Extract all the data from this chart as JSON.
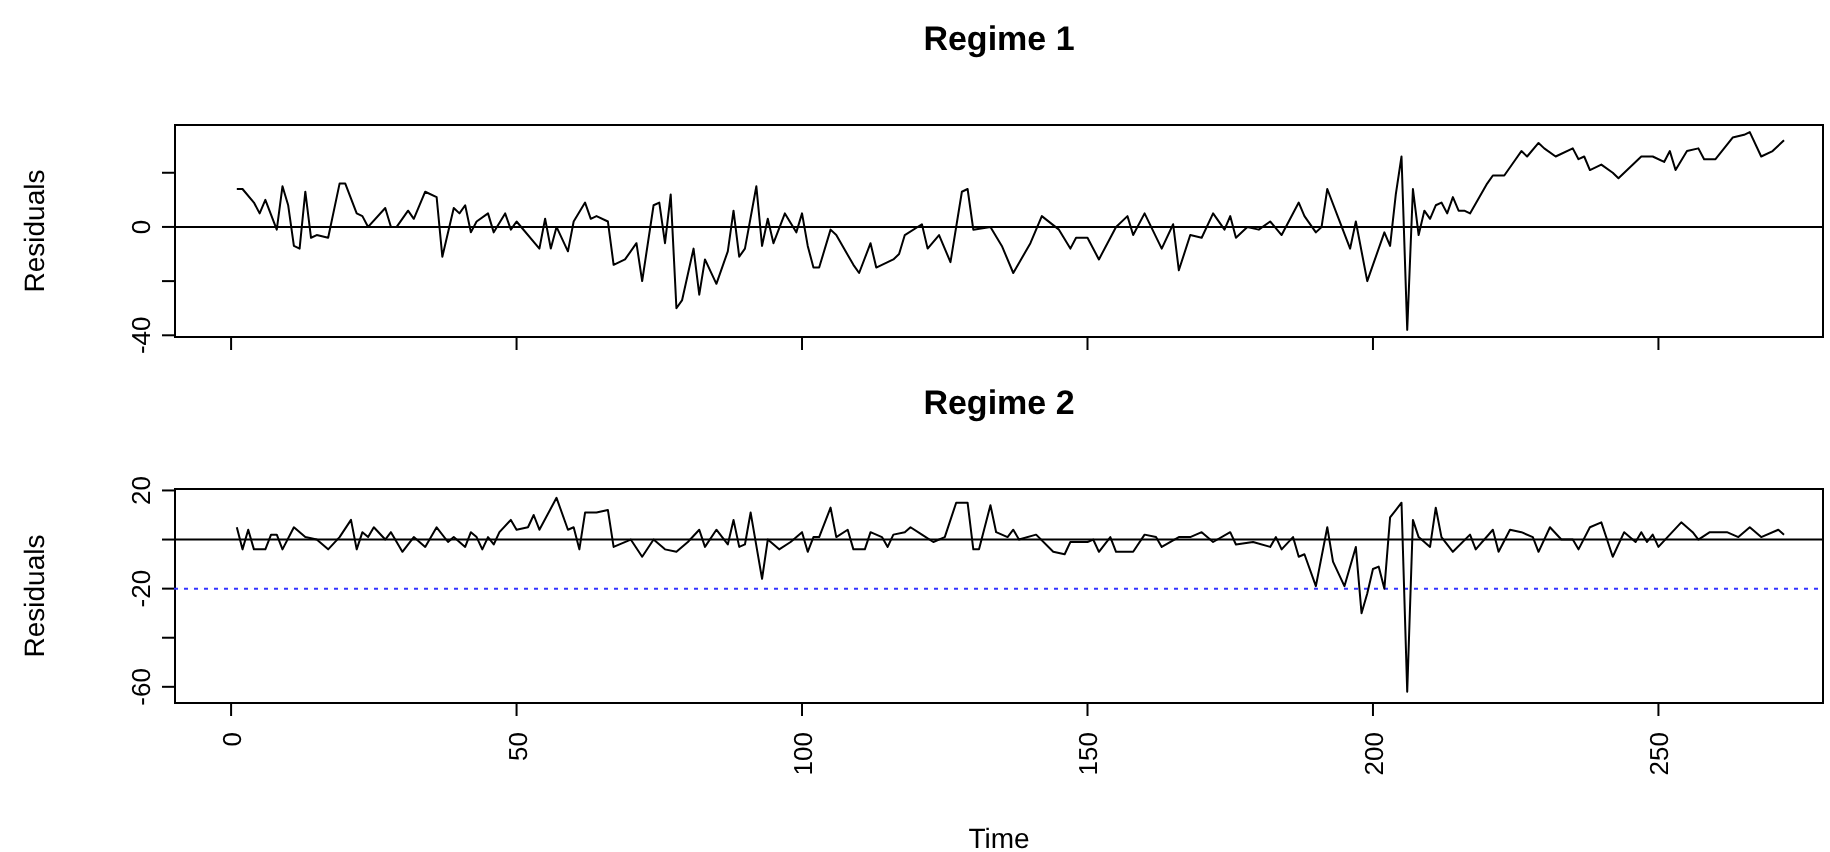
{
  "chart_data": [
    {
      "type": "line",
      "title": "Regime 1",
      "ylabel": "Residuals",
      "tick_labels": "y",
      "marker": "none",
      "line_style": "solid",
      "xlim": [
        -10,
        279
      ],
      "xticks": [
        0,
        50,
        100,
        150,
        200,
        250
      ],
      "ylim": [
        -41,
        38
      ],
      "yticks": [
        -40,
        {
          "value": -20,
          "label": null
        },
        0,
        {
          "value": 20,
          "label": null
        }
      ],
      "ref_lines": [
        {
          "axis": "y",
          "value": 0,
          "color": "#000000",
          "line_style": "solid"
        }
      ],
      "series": [
        {
          "color": "#000000",
          "x": [
            1,
            2,
            4,
            5,
            6,
            8,
            9,
            10,
            11,
            12,
            13,
            14,
            15,
            17,
            19,
            20,
            22,
            23,
            24,
            27,
            28,
            29,
            31,
            32,
            34,
            36,
            37,
            39,
            40,
            41,
            42,
            43,
            45,
            46,
            48,
            49,
            50,
            54,
            55,
            56,
            57,
            59,
            60,
            62,
            63,
            64,
            66,
            67,
            69,
            71,
            72,
            74,
            75,
            76,
            77,
            78,
            79,
            81,
            82,
            83,
            85,
            87,
            88,
            89,
            90,
            92,
            93,
            94,
            95,
            97,
            99,
            100,
            101,
            102,
            103,
            105,
            106,
            109,
            110,
            112,
            113,
            116,
            117,
            118,
            121,
            122,
            124,
            126,
            128,
            129,
            130,
            133,
            135,
            137,
            140,
            142,
            145,
            147,
            148,
            150,
            152,
            155,
            157,
            158,
            160,
            163,
            165,
            166,
            168,
            170,
            172,
            174,
            175,
            176,
            178,
            180,
            182,
            184,
            187,
            188,
            190,
            191,
            192,
            194,
            196,
            197,
            199,
            202,
            203,
            204,
            205,
            206,
            207,
            208,
            209,
            210,
            211,
            212,
            213,
            214,
            215,
            216,
            217,
            220,
            221,
            223,
            225,
            226,
            227,
            229,
            230,
            232,
            235,
            236,
            237,
            238,
            240,
            242,
            243,
            247,
            249,
            251,
            252,
            253,
            255,
            257,
            258,
            260,
            263,
            265,
            266,
            268,
            270,
            272
          ],
          "values": [
            14,
            14,
            9,
            5,
            10,
            -1,
            15,
            8,
            -7,
            -8,
            13,
            -4,
            -3,
            -4,
            16,
            16,
            5,
            4,
            0,
            7,
            0,
            0,
            6,
            3,
            13,
            11,
            -11,
            7,
            5,
            8,
            -2,
            2,
            5,
            -2,
            5,
            -1,
            2,
            -8,
            3,
            -8,
            0,
            -9,
            2,
            9,
            3,
            4,
            2,
            -14,
            -12,
            -6,
            -20,
            8,
            9,
            -6,
            12,
            -30,
            -27,
            -8,
            -25,
            -12,
            -21,
            -9,
            6,
            -11,
            -8,
            15,
            -7,
            3,
            -6,
            5,
            -2,
            5,
            -7,
            -15,
            -15,
            -1,
            -3,
            -14,
            -17,
            -6,
            -15,
            -12,
            -10,
            -3,
            1,
            -8,
            -3,
            -13,
            13,
            14,
            -1,
            0,
            -7,
            -17,
            -6,
            4,
            -1,
            -8,
            -4,
            -4,
            -12,
            0,
            4,
            -3,
            5,
            -8,
            1,
            -16,
            -3,
            -4,
            5,
            -1,
            4,
            -4,
            0,
            -1,
            2,
            -3,
            9,
            4,
            -2,
            0,
            14,
            3,
            -8,
            2,
            -20,
            -2,
            -7,
            12,
            26,
            -38,
            14,
            -3,
            6,
            3,
            8,
            9,
            5,
            11,
            6,
            6,
            5,
            16,
            19,
            19,
            25,
            28,
            26,
            31,
            29,
            26,
            29,
            25,
            26,
            21,
            23,
            20,
            18,
            26,
            26,
            24,
            28,
            21,
            28,
            29,
            25,
            25,
            33,
            34,
            35,
            26,
            28,
            32
          ]
        }
      ]
    },
    {
      "type": "line",
      "title": "Regime 2",
      "xlabel": "Time",
      "ylabel": "Residuals",
      "marker": "none",
      "line_style": "solid",
      "xlim": [
        -10,
        279
      ],
      "xticks": [
        0,
        50,
        100,
        150,
        200,
        250
      ],
      "ylim": [
        -67,
        21
      ],
      "yticks": [
        -60,
        {
          "value": -40,
          "label": null
        },
        -20,
        {
          "value": 0,
          "label": null
        },
        20
      ],
      "ref_lines": [
        {
          "axis": "y",
          "value": 0,
          "color": "#000000",
          "line_style": "solid"
        },
        {
          "axis": "y",
          "value": -20,
          "color": "#3333ff",
          "line_style": "dotted"
        }
      ],
      "series": [
        {
          "color": "#000000",
          "x": [
            1,
            2,
            3,
            4,
            6,
            7,
            8,
            9,
            11,
            13,
            15,
            17,
            19,
            21,
            22,
            23,
            24,
            25,
            27,
            28,
            30,
            32,
            34,
            36,
            38,
            39,
            41,
            42,
            43,
            44,
            45,
            46,
            47,
            49,
            50,
            52,
            53,
            54,
            57,
            59,
            60,
            61,
            62,
            64,
            66,
            67,
            70,
            72,
            74,
            76,
            78,
            80,
            82,
            83,
            85,
            87,
            88,
            89,
            90,
            91,
            93,
            94,
            96,
            98,
            100,
            101,
            102,
            103,
            105,
            106,
            108,
            109,
            111,
            112,
            114,
            115,
            116,
            118,
            119,
            121,
            123,
            125,
            127,
            129,
            130,
            131,
            133,
            134,
            136,
            137,
            138,
            141,
            144,
            146,
            147,
            150,
            151,
            152,
            154,
            155,
            158,
            160,
            162,
            163,
            166,
            168,
            170,
            172,
            175,
            176,
            179,
            182,
            183,
            184,
            186,
            187,
            188,
            190,
            192,
            193,
            195,
            197,
            198,
            199,
            200,
            201,
            202,
            203,
            204,
            205,
            206,
            207,
            208,
            210,
            211,
            212,
            214,
            217,
            218,
            221,
            222,
            224,
            226,
            228,
            229,
            231,
            233,
            235,
            236,
            238,
            240,
            242,
            244,
            246,
            247,
            248,
            249,
            250,
            254,
            256,
            257,
            259,
            262,
            264,
            266,
            268,
            271,
            272
          ],
          "values": [
            5,
            -4,
            4,
            -4,
            -4,
            2,
            2,
            -4,
            5,
            1,
            0,
            -4,
            1,
            8,
            -4,
            3,
            1,
            5,
            0,
            3,
            -5,
            1,
            -3,
            5,
            -1,
            1,
            -3,
            3,
            1,
            -4,
            1,
            -2,
            3,
            8,
            4,
            5,
            10,
            4,
            17,
            4,
            5,
            -4,
            11,
            11,
            12,
            -3,
            0,
            -7,
            0,
            -4,
            -5,
            -1,
            4,
            -3,
            4,
            -2,
            8,
            -3,
            -2,
            11,
            -16,
            0,
            -4,
            -1,
            3,
            -5,
            1,
            1,
            13,
            1,
            4,
            -4,
            -4,
            3,
            1,
            -3,
            2,
            3,
            5,
            2,
            -1,
            1,
            15,
            15,
            -4,
            -4,
            14,
            3,
            1,
            4,
            0,
            2,
            -5,
            -6,
            -1,
            -1,
            0,
            -5,
            1,
            -5,
            -5,
            2,
            1,
            -3,
            1,
            1,
            3,
            -1,
            3,
            -2,
            -1,
            -3,
            1,
            -4,
            1,
            -7,
            -6,
            -19,
            5,
            -9,
            -19,
            -3,
            -30,
            -22,
            -12,
            -11,
            -20,
            9,
            12,
            15,
            -62,
            8,
            1,
            -3,
            13,
            1,
            -5,
            2,
            -4,
            4,
            -5,
            4,
            3,
            1,
            -5,
            5,
            0,
            0,
            -4,
            5,
            7,
            -7,
            3,
            -1,
            3,
            -1,
            2,
            -3,
            7,
            3,
            0,
            3,
            3,
            1,
            5,
            1,
            4,
            2
          ]
        }
      ]
    }
  ]
}
